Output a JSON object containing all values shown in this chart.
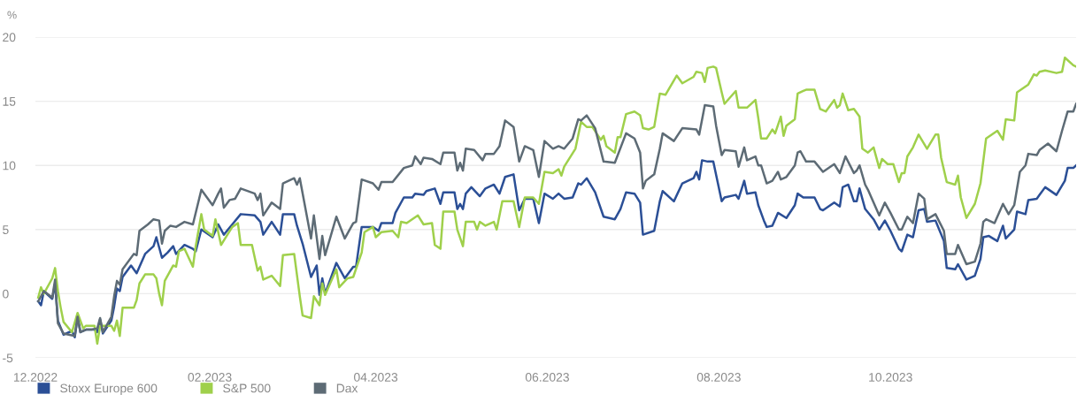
{
  "chart_data": {
    "type": "line",
    "ylabel": "%",
    "xlim": [
      "2022-12-01",
      "2023-12-06"
    ],
    "xticks": [
      {
        "value": "2022-12-01",
        "label": "12.2022"
      },
      {
        "value": "2023-02-01",
        "label": "02.2023"
      },
      {
        "value": "2023-04-01",
        "label": "04.2023"
      },
      {
        "value": "2023-06-01",
        "label": "06.2023"
      },
      {
        "value": "2023-08-01",
        "label": "08.2023"
      },
      {
        "value": "2023-10-01",
        "label": "10.2023"
      }
    ],
    "ylim": [
      -5,
      20
    ],
    "yticks": [
      -5,
      0,
      5,
      10,
      15,
      20
    ],
    "grid": "y",
    "legend": "bottom left",
    "marker": "none",
    "line_style": "solid",
    "series": [
      {
        "name": "Stoxx Europe 600",
        "color": "#2b4f96",
        "x": [
          "2022-12-02",
          "2022-12-03",
          "2022-12-04",
          "2022-12-07",
          "2022-12-08",
          "2022-12-09",
          "2022-12-11",
          "2022-12-14",
          "2022-12-15",
          "2022-12-16",
          "2022-12-17",
          "2022-12-19",
          "2022-12-22",
          "2022-12-23",
          "2022-12-24",
          "2022-12-25",
          "2022-12-28",
          "2022-12-29",
          "2022-12-30",
          "2022-12-31",
          "2023-01-01",
          "2023-01-04",
          "2023-01-06",
          "2023-01-09",
          "2023-01-12",
          "2023-01-13",
          "2023-01-15",
          "2023-01-17",
          "2023-01-19",
          "2023-01-20",
          "2023-01-23",
          "2023-01-26",
          "2023-01-27",
          "2023-01-29",
          "2023-02-02",
          "2023-02-04",
          "2023-02-06",
          "2023-02-09",
          "2023-02-12",
          "2023-02-17",
          "2023-02-19",
          "2023-02-20",
          "2023-02-23",
          "2023-02-26",
          "2023-02-27",
          "2023-03-03",
          "2023-03-04",
          "2023-03-06",
          "2023-03-09",
          "2023-03-11",
          "2023-03-12",
          "2023-03-13",
          "2023-03-14",
          "2023-03-18",
          "2023-03-21",
          "2023-03-24",
          "2023-03-25",
          "2023-03-27",
          "2023-03-31",
          "2023-04-02",
          "2023-04-03",
          "2023-04-07",
          "2023-04-08",
          "2023-04-11",
          "2023-04-14",
          "2023-04-15",
          "2023-04-18",
          "2023-04-19",
          "2023-04-22",
          "2023-04-24",
          "2023-04-25",
          "2023-04-29",
          "2023-04-30",
          "2023-05-01",
          "2023-05-02",
          "2023-05-03",
          "2023-05-05",
          "2023-05-08",
          "2023-05-10",
          "2023-05-13",
          "2023-05-15",
          "2023-05-17",
          "2023-05-20",
          "2023-05-22",
          "2023-05-24",
          "2023-05-27",
          "2023-05-29",
          "2023-05-31",
          "2023-06-03",
          "2023-06-05",
          "2023-06-07",
          "2023-06-10",
          "2023-06-12",
          "2023-06-13",
          "2023-06-15",
          "2023-06-18",
          "2023-06-21",
          "2023-06-25",
          "2023-06-27",
          "2023-06-29",
          "2023-07-02",
          "2023-07-04",
          "2023-07-05",
          "2023-07-09",
          "2023-07-11",
          "2023-07-12",
          "2023-07-16",
          "2023-07-19",
          "2023-07-23",
          "2023-07-24",
          "2023-07-25",
          "2023-07-26",
          "2023-07-28",
          "2023-07-30",
          "2023-08-02",
          "2023-08-03",
          "2023-08-07",
          "2023-08-08",
          "2023-08-10",
          "2023-08-11",
          "2023-08-14",
          "2023-08-15",
          "2023-08-17",
          "2023-08-18",
          "2023-08-20",
          "2023-08-22",
          "2023-08-25",
          "2023-08-28",
          "2023-08-29",
          "2023-08-31",
          "2023-09-04",
          "2023-09-06",
          "2023-09-07",
          "2023-09-11",
          "2023-09-13",
          "2023-09-14",
          "2023-09-16",
          "2023-09-18",
          "2023-09-19",
          "2023-09-20",
          "2023-09-22",
          "2023-09-25",
          "2023-09-27",
          "2023-09-29",
          "2023-10-01",
          "2023-10-04",
          "2023-10-05",
          "2023-10-07",
          "2023-10-09",
          "2023-10-11",
          "2023-10-13",
          "2023-10-14",
          "2023-10-17",
          "2023-10-20",
          "2023-10-21",
          "2023-10-24",
          "2023-10-25",
          "2023-10-28",
          "2023-10-31",
          "2023-11-02",
          "2023-11-03",
          "2023-11-05",
          "2023-11-08",
          "2023-11-10",
          "2023-11-11",
          "2023-11-14",
          "2023-11-15",
          "2023-11-18",
          "2023-11-19",
          "2023-11-22",
          "2023-11-23",
          "2023-11-25",
          "2023-11-29",
          "2023-12-02",
          "2023-12-03",
          "2023-12-05",
          "2023-12-06"
        ],
        "values": [
          -0.6,
          -0.9,
          0.2,
          -0.4,
          0.8,
          -2.1,
          -3.2,
          -2.9,
          -3.4,
          -1.8,
          -3.0,
          -2.8,
          -2.8,
          -3.0,
          -2.0,
          -3.1,
          -2.1,
          -1.0,
          0.4,
          0.2,
          1.3,
          2.2,
          1.6,
          3.1,
          3.7,
          4.4,
          2.8,
          3.2,
          3.7,
          3.1,
          3.8,
          3.5,
          3.3,
          5.0,
          4.4,
          5.4,
          4.6,
          5.4,
          6.2,
          6.1,
          5.6,
          4.6,
          5.6,
          4.6,
          6.2,
          6.2,
          5.3,
          3.9,
          1.3,
          2.2,
          -0.1,
          1.2,
          0.0,
          2.4,
          1.2,
          2.1,
          2.1,
          5.2,
          5.2,
          4.9,
          5.5,
          5.5,
          6.3,
          7.5,
          7.5,
          7.8,
          7.7,
          8.0,
          8.2,
          7.0,
          7.9,
          7.9,
          6.6,
          7.0,
          6.6,
          7.8,
          8.3,
          7.6,
          8.2,
          8.5,
          7.8,
          9.1,
          9.3,
          6.5,
          7.4,
          7.4,
          5.5,
          7.8,
          7.4,
          7.8,
          7.4,
          7.5,
          8.6,
          8.5,
          9.0,
          7.9,
          6.0,
          5.8,
          6.6,
          7.9,
          7.8,
          7.1,
          4.6,
          4.9,
          7.2,
          8.0,
          7.2,
          8.6,
          9.0,
          9.5,
          8.9,
          10.4,
          10.3,
          10.3,
          7.2,
          7.5,
          7.7,
          7.4,
          8.8,
          7.8,
          7.9,
          6.9,
          5.7,
          5.2,
          5.3,
          6.3,
          5.9,
          6.9,
          7.8,
          7.5,
          7.5,
          6.6,
          6.5,
          7.1,
          6.8,
          8.3,
          8.5,
          7.2,
          7.2,
          8.2,
          6.6,
          5.8,
          5.0,
          5.7,
          4.9,
          3.5,
          3.3,
          4.6,
          4.4,
          6.5,
          6.6,
          5.6,
          5.7,
          4.1,
          2.0,
          1.9,
          2.3,
          1.1,
          1.4,
          2.7,
          4.4,
          4.5,
          4.1,
          5.3,
          4.3,
          5.0,
          6.4,
          6.2,
          7.3,
          7.4,
          7.7,
          8.3,
          7.7,
          8.8,
          9.8,
          9.8,
          10.0
        ]
      },
      {
        "name": "S&P 500",
        "color": "#9fd04b",
        "x": [
          "2022-12-02",
          "2022-12-03",
          "2022-12-04",
          "2022-12-07",
          "2022-12-08",
          "2022-12-09",
          "2022-12-10",
          "2022-12-11",
          "2022-12-14",
          "2022-12-16",
          "2022-12-18",
          "2022-12-19",
          "2022-12-22",
          "2022-12-23",
          "2022-12-24",
          "2022-12-28",
          "2022-12-29",
          "2022-12-30",
          "2022-12-31",
          "2023-01-01",
          "2023-01-05",
          "2023-01-06",
          "2023-01-07",
          "2023-01-09",
          "2023-01-12",
          "2023-01-13",
          "2023-01-14",
          "2023-01-15",
          "2023-01-16",
          "2023-01-19",
          "2023-01-20",
          "2023-01-21",
          "2023-01-23",
          "2023-01-26",
          "2023-01-27",
          "2023-01-29",
          "2023-01-30",
          "2023-02-02",
          "2023-02-03",
          "2023-02-05",
          "2023-02-09",
          "2023-02-11",
          "2023-02-12",
          "2023-02-16",
          "2023-02-18",
          "2023-02-19",
          "2023-02-20",
          "2023-02-23",
          "2023-02-26",
          "2023-02-27",
          "2023-03-03",
          "2023-03-05",
          "2023-03-06",
          "2023-03-09",
          "2023-03-10",
          "2023-03-12",
          "2023-03-13",
          "2023-03-14",
          "2023-03-18",
          "2023-03-19",
          "2023-03-22",
          "2023-03-24",
          "2023-03-27",
          "2023-03-28",
          "2023-03-31",
          "2023-04-01",
          "2023-04-03",
          "2023-04-07",
          "2023-04-09",
          "2023-04-10",
          "2023-04-12",
          "2023-04-16",
          "2023-04-18",
          "2023-04-21",
          "2023-04-22",
          "2023-04-24",
          "2023-04-25",
          "2023-04-29",
          "2023-04-30",
          "2023-05-02",
          "2023-05-03",
          "2023-05-06",
          "2023-05-07",
          "2023-05-08",
          "2023-05-10",
          "2023-05-13",
          "2023-05-14",
          "2023-05-16",
          "2023-05-20",
          "2023-05-22",
          "2023-05-24",
          "2023-05-27",
          "2023-05-29",
          "2023-05-31",
          "2023-06-03",
          "2023-06-05",
          "2023-06-06",
          "2023-06-07",
          "2023-06-11",
          "2023-06-13",
          "2023-06-15",
          "2023-06-17",
          "2023-06-20",
          "2023-06-21",
          "2023-06-22",
          "2023-06-25",
          "2023-06-26",
          "2023-06-27",
          "2023-06-29",
          "2023-07-02",
          "2023-07-04",
          "2023-07-05",
          "2023-07-07",
          "2023-07-09",
          "2023-07-11",
          "2023-07-13",
          "2023-07-17",
          "2023-07-19",
          "2023-07-23",
          "2023-07-24",
          "2023-07-26",
          "2023-07-27",
          "2023-07-28",
          "2023-07-30",
          "2023-07-31",
          "2023-08-02",
          "2023-08-03",
          "2023-08-07",
          "2023-08-08",
          "2023-08-11",
          "2023-08-14",
          "2023-08-15",
          "2023-08-16",
          "2023-08-18",
          "2023-08-20",
          "2023-08-21",
          "2023-08-23",
          "2023-08-24",
          "2023-08-25",
          "2023-08-28",
          "2023-08-29",
          "2023-08-31",
          "2023-09-01",
          "2023-09-04",
          "2023-09-06",
          "2023-09-08",
          "2023-09-11",
          "2023-09-12",
          "2023-09-13",
          "2023-09-14",
          "2023-09-16",
          "2023-09-18",
          "2023-09-20",
          "2023-09-21",
          "2023-09-23",
          "2023-09-25",
          "2023-09-27",
          "2023-09-28",
          "2023-09-30",
          "2023-10-02",
          "2023-10-04",
          "2023-10-05",
          "2023-10-06",
          "2023-10-07",
          "2023-10-09",
          "2023-10-11",
          "2023-10-14",
          "2023-10-17",
          "2023-10-18",
          "2023-10-19",
          "2023-10-21",
          "2023-10-24",
          "2023-10-25",
          "2023-10-26",
          "2023-10-28",
          "2023-10-31",
          "2023-11-02",
          "2023-11-04",
          "2023-11-08",
          "2023-11-10",
          "2023-11-11",
          "2023-11-14",
          "2023-11-15",
          "2023-11-19",
          "2023-11-21",
          "2023-11-22",
          "2023-11-23",
          "2023-11-25",
          "2023-11-29",
          "2023-12-01",
          "2023-12-02",
          "2023-12-05",
          "2023-12-06"
        ],
        "values": [
          -0.3,
          0.5,
          0.0,
          1.2,
          2.0,
          0.2,
          -1.1,
          -2.2,
          -3.0,
          -1.5,
          -2.7,
          -2.5,
          -2.5,
          -3.9,
          -2.5,
          -2.5,
          -2.9,
          -2.1,
          -3.3,
          -1.1,
          -1.1,
          -0.5,
          0.8,
          1.5,
          1.5,
          1.2,
          0.0,
          -0.9,
          1.0,
          2.2,
          2.1,
          3.3,
          3.5,
          2.1,
          3.7,
          6.2,
          5.0,
          4.5,
          5.8,
          3.8,
          5.2,
          5.5,
          3.8,
          3.8,
          1.8,
          2.1,
          1.1,
          1.4,
          0.6,
          3.0,
          3.1,
          -0.2,
          -1.7,
          -1.9,
          -0.2,
          -0.9,
          0.8,
          -0.1,
          1.9,
          0.5,
          1.2,
          1.3,
          3.2,
          4.8,
          5.2,
          4.4,
          4.8,
          4.9,
          4.4,
          5.6,
          5.5,
          6.1,
          5.4,
          5.5,
          3.8,
          3.5,
          6.4,
          6.4,
          5.0,
          3.7,
          5.6,
          5.6,
          5.0,
          5.6,
          5.3,
          5.6,
          5.0,
          7.2,
          7.2,
          5.2,
          7.5,
          7.5,
          7.0,
          9.5,
          9.4,
          9.7,
          9.2,
          9.9,
          11.3,
          13.4,
          13.0,
          13.0,
          12.0,
          12.3,
          11.5,
          11.0,
          12.2,
          12.2,
          14.0,
          14.2,
          13.9,
          12.9,
          12.8,
          13.0,
          15.6,
          15.5,
          17.0,
          16.4,
          16.9,
          17.3,
          17.2,
          16.5,
          17.6,
          17.7,
          17.6,
          15.7,
          14.8,
          15.8,
          14.5,
          14.5,
          15.1,
          13.7,
          12.1,
          12.1,
          12.8,
          12.5,
          13.8,
          12.3,
          13.1,
          13.6,
          15.6,
          15.8,
          15.9,
          15.9,
          14.4,
          14.2,
          15.1,
          14.5,
          14.7,
          15.6,
          14.3,
          14.4,
          13.8,
          11.3,
          11.0,
          11.4,
          9.8,
          10.5,
          10.1,
          10.1,
          8.7,
          9.4,
          9.4,
          10.7,
          11.4,
          12.4,
          11.3,
          12.4,
          12.4,
          10.6,
          8.7,
          8.5,
          9.2,
          7.5,
          5.9,
          7.0,
          8.6,
          12.1,
          12.7,
          12.0,
          13.6,
          13.5,
          15.7,
          16.3,
          17.1,
          17.0,
          17.3,
          17.4,
          17.2,
          17.3,
          18.4,
          17.8,
          17.7
        ]
      },
      {
        "name": "Dax",
        "color": "#5d6b75",
        "x": [
          "2022-12-02",
          "2022-12-04",
          "2022-12-07",
          "2022-12-08",
          "2022-12-09",
          "2022-12-11",
          "2022-12-15",
          "2022-12-16",
          "2022-12-17",
          "2022-12-19",
          "2022-12-21",
          "2022-12-23",
          "2022-12-24",
          "2022-12-25",
          "2022-12-28",
          "2022-12-29",
          "2022-12-30",
          "2022-12-31",
          "2023-01-01",
          "2023-01-05",
          "2023-01-06",
          "2023-01-07",
          "2023-01-10",
          "2023-01-12",
          "2023-01-14",
          "2023-01-15",
          "2023-01-16",
          "2023-01-18",
          "2023-01-20",
          "2023-01-23",
          "2023-01-26",
          "2023-01-29",
          "2023-02-02",
          "2023-02-04",
          "2023-02-05",
          "2023-02-06",
          "2023-02-08",
          "2023-02-10",
          "2023-02-12",
          "2023-02-17",
          "2023-02-18",
          "2023-02-19",
          "2023-02-20",
          "2023-02-23",
          "2023-02-26",
          "2023-02-27",
          "2023-03-03",
          "2023-03-04",
          "2023-03-05",
          "2023-03-09",
          "2023-03-10",
          "2023-03-12",
          "2023-03-13",
          "2023-03-14",
          "2023-03-18",
          "2023-03-21",
          "2023-03-24",
          "2023-03-25",
          "2023-03-27",
          "2023-03-31",
          "2023-04-02",
          "2023-04-03",
          "2023-04-07",
          "2023-04-11",
          "2023-04-14",
          "2023-04-15",
          "2023-04-17",
          "2023-04-18",
          "2023-04-21",
          "2023-04-24",
          "2023-04-25",
          "2023-04-29",
          "2023-04-30",
          "2023-05-01",
          "2023-05-02",
          "2023-05-03",
          "2023-05-06",
          "2023-05-09",
          "2023-05-10",
          "2023-05-13",
          "2023-05-15",
          "2023-05-17",
          "2023-05-20",
          "2023-05-22",
          "2023-05-24",
          "2023-05-27",
          "2023-05-29",
          "2023-05-31",
          "2023-06-03",
          "2023-06-05",
          "2023-06-07",
          "2023-06-10",
          "2023-06-12",
          "2023-06-13",
          "2023-06-15",
          "2023-06-18",
          "2023-06-21",
          "2023-06-25",
          "2023-06-29",
          "2023-07-02",
          "2023-07-04",
          "2023-07-05",
          "2023-07-06",
          "2023-07-09",
          "2023-07-11",
          "2023-07-12",
          "2023-07-16",
          "2023-07-19",
          "2023-07-24",
          "2023-07-25",
          "2023-07-27",
          "2023-07-30",
          "2023-07-31",
          "2023-08-02",
          "2023-08-03",
          "2023-08-07",
          "2023-08-08",
          "2023-08-10",
          "2023-08-11",
          "2023-08-14",
          "2023-08-15",
          "2023-08-16",
          "2023-08-18",
          "2023-08-20",
          "2023-08-22",
          "2023-08-23",
          "2023-08-25",
          "2023-08-28",
          "2023-08-29",
          "2023-08-30",
          "2023-09-01",
          "2023-09-04",
          "2023-09-07",
          "2023-09-11",
          "2023-09-13",
          "2023-09-15",
          "2023-09-18",
          "2023-09-19",
          "2023-09-20",
          "2023-09-22",
          "2023-09-23",
          "2023-09-27",
          "2023-09-29",
          "2023-10-01",
          "2023-10-04",
          "2023-10-05",
          "2023-10-07",
          "2023-10-09",
          "2023-10-11",
          "2023-10-13",
          "2023-10-14",
          "2023-10-17",
          "2023-10-20",
          "2023-10-21",
          "2023-10-24",
          "2023-10-25",
          "2023-10-28",
          "2023-10-31",
          "2023-11-02",
          "2023-11-03",
          "2023-11-04",
          "2023-11-07",
          "2023-11-10",
          "2023-11-12",
          "2023-11-14",
          "2023-11-16",
          "2023-11-18",
          "2023-11-19",
          "2023-11-22",
          "2023-11-23",
          "2023-11-26",
          "2023-11-29",
          "2023-12-01",
          "2023-12-03",
          "2023-12-05",
          "2023-12-06"
        ],
        "values": [
          -0.6,
          0.2,
          -0.3,
          1.1,
          -2.3,
          -3.1,
          -3.3,
          -1.8,
          -3.0,
          -2.8,
          -2.8,
          -2.7,
          -1.9,
          -3.0,
          -1.8,
          -0.2,
          1.0,
          0.7,
          1.9,
          3.1,
          3.0,
          4.9,
          5.4,
          5.8,
          5.7,
          3.9,
          4.9,
          5.3,
          5.2,
          5.6,
          5.4,
          8.1,
          6.9,
          7.8,
          8.2,
          6.7,
          7.3,
          7.4,
          8.2,
          7.8,
          7.3,
          7.8,
          6.1,
          7.1,
          6.6,
          8.6,
          9.0,
          8.5,
          9.0,
          4.3,
          6.1,
          2.7,
          4.5,
          3.0,
          6.0,
          4.3,
          5.5,
          5.6,
          8.9,
          8.6,
          8.1,
          8.7,
          8.7,
          9.8,
          10.0,
          10.7,
          10.1,
          10.6,
          10.5,
          10.1,
          11.0,
          11.0,
          9.6,
          10.2,
          9.6,
          11.3,
          11.2,
          10.4,
          10.9,
          10.9,
          11.5,
          13.5,
          13.0,
          10.3,
          11.5,
          11.2,
          9.1,
          11.9,
          11.3,
          11.5,
          11.3,
          12.1,
          13.6,
          13.5,
          13.9,
          12.9,
          10.3,
          10.2,
          12.5,
          12.1,
          11.0,
          8.2,
          8.8,
          9.3,
          11.3,
          12.5,
          11.9,
          12.9,
          12.8,
          12.4,
          14.7,
          14.6,
          13.1,
          10.8,
          11.2,
          11.1,
          9.9,
          11.4,
          10.4,
          10.7,
          10.0,
          10.0,
          8.6,
          8.8,
          9.5,
          8.9,
          9.1,
          10.0,
          11.0,
          11.1,
          10.3,
          10.3,
          9.5,
          10.1,
          9.4,
          10.7,
          9.4,
          9.6,
          10.0,
          8.5,
          8.1,
          6.1,
          7.1,
          6.3,
          5.0,
          5.0,
          6.0,
          5.5,
          7.8,
          7.4,
          5.8,
          6.2,
          4.9,
          3.1,
          3.1,
          3.8,
          2.3,
          2.5,
          3.9,
          5.6,
          5.8,
          5.5,
          7.0,
          6.2,
          6.9,
          9.5,
          10.0,
          10.9,
          10.8,
          11.2,
          11.7,
          11.1,
          12.7,
          14.2,
          14.2,
          14.8
        ]
      }
    ]
  }
}
